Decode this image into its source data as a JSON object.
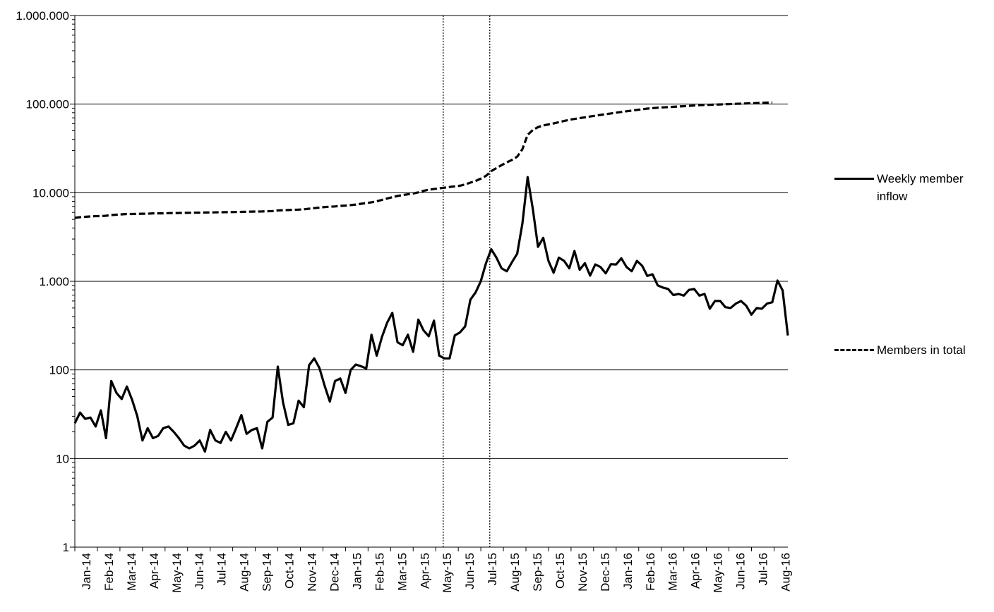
{
  "chart_data": {
    "type": "line",
    "title": "",
    "xlabel": "",
    "ylabel": "",
    "y_scale": "log",
    "ylim": [
      1,
      1000000
    ],
    "y_ticks": [
      {
        "value": 1,
        "label": "1"
      },
      {
        "value": 10,
        "label": "10"
      },
      {
        "value": 100,
        "label": "100"
      },
      {
        "value": 1000,
        "label": "1.000"
      },
      {
        "value": 10000,
        "label": "10.000"
      },
      {
        "value": 100000,
        "label": "100.000"
      },
      {
        "value": 1000000,
        "label": "1.000.000"
      }
    ],
    "x_tick_labels": [
      "Jan-14",
      "Feb-14",
      "Mar-14",
      "Apr-14",
      "May-14",
      "Jun-14",
      "Jul-14",
      "Aug-14",
      "Sep-14",
      "Oct-14",
      "Nov-14",
      "Dec-14",
      "Jan-15",
      "Feb-15",
      "Mar-15",
      "Apr-15",
      "May-15",
      "Jun-15",
      "Jul-15",
      "Aug-15",
      "Sep-15",
      "Oct-15",
      "Nov-15",
      "Dec-15",
      "Jan-16",
      "Feb-16",
      "Mar-16",
      "Apr-16",
      "May-16",
      "Jun-16",
      "Jul-16",
      "Aug-16"
    ],
    "grid": "horizontal",
    "legend_position": "right",
    "reference_lines_x_week": [
      72,
      80
    ],
    "series": [
      {
        "name": "Weekly member inflow",
        "style": "solid",
        "values": [
          25,
          33,
          28,
          29,
          23,
          35,
          17,
          75,
          55,
          47,
          65,
          46,
          30,
          16,
          22,
          17,
          18,
          22,
          23,
          20,
          17,
          14,
          13,
          14,
          16,
          12,
          21,
          16,
          15,
          20,
          16,
          22,
          31,
          19,
          21,
          22,
          13,
          26,
          29,
          109,
          43,
          24,
          25,
          45,
          38,
          113,
          135,
          105,
          66,
          44,
          75,
          80,
          55,
          100,
          115,
          110,
          104,
          250,
          145,
          235,
          340,
          440,
          205,
          190,
          250,
          160,
          370,
          280,
          240,
          360,
          145,
          135,
          135,
          245,
          265,
          310,
          620,
          750,
          1000,
          1600,
          2300,
          1850,
          1400,
          1300,
          1650,
          2050,
          4500,
          15000,
          6500,
          2450,
          3100,
          1700,
          1250,
          1850,
          1700,
          1400,
          2200,
          1350,
          1600,
          1160,
          1550,
          1450,
          1230,
          1560,
          1550,
          1820,
          1450,
          1300,
          1700,
          1500,
          1150,
          1200,
          900,
          850,
          820,
          700,
          720,
          690,
          800,
          820,
          690,
          720,
          490,
          600,
          600,
          510,
          500,
          560,
          600,
          530,
          420,
          500,
          490,
          560,
          580,
          1020,
          790,
          245
        ]
      },
      {
        "name": "Members in total",
        "style": "dashed",
        "values": [
          5200,
          5300,
          5350,
          5400,
          5450,
          5450,
          5500,
          5600,
          5650,
          5700,
          5750,
          5750,
          5780,
          5800,
          5800,
          5850,
          5850,
          5850,
          5880,
          5900,
          5900,
          5920,
          5940,
          5950,
          5960,
          5980,
          5990,
          6000,
          6020,
          6030,
          6040,
          6060,
          6080,
          6100,
          6120,
          6140,
          6150,
          6180,
          6200,
          6300,
          6350,
          6380,
          6420,
          6450,
          6500,
          6600,
          6700,
          6800,
          6900,
          6950,
          7000,
          7100,
          7150,
          7250,
          7350,
          7500,
          7650,
          7800,
          8000,
          8300,
          8600,
          8900,
          9200,
          9400,
          9600,
          9800,
          10100,
          10500,
          10800,
          11000,
          11200,
          11400,
          11600,
          11800,
          12000,
          12400,
          13000,
          13600,
          14400,
          15500,
          17500,
          19000,
          20500,
          22000,
          23500,
          25500,
          31000,
          45000,
          51000,
          55000,
          57500,
          59000,
          60500,
          62500,
          64500,
          66500,
          68000,
          69500,
          71000,
          72500,
          74000,
          75500,
          77000,
          78500,
          80000,
          81500,
          83000,
          84500,
          86000,
          87500,
          89000,
          90000,
          91000,
          91800,
          92500,
          93200,
          94000,
          94800,
          95600,
          96400,
          97200,
          97800,
          98300,
          98800,
          99300,
          99800,
          100300,
          100800,
          101300,
          101800,
          102300,
          102800,
          103300,
          103800,
          104500
        ]
      }
    ]
  },
  "legend": {
    "items": [
      {
        "label": "Weekly member inflow"
      },
      {
        "label": "Members in total"
      }
    ]
  }
}
